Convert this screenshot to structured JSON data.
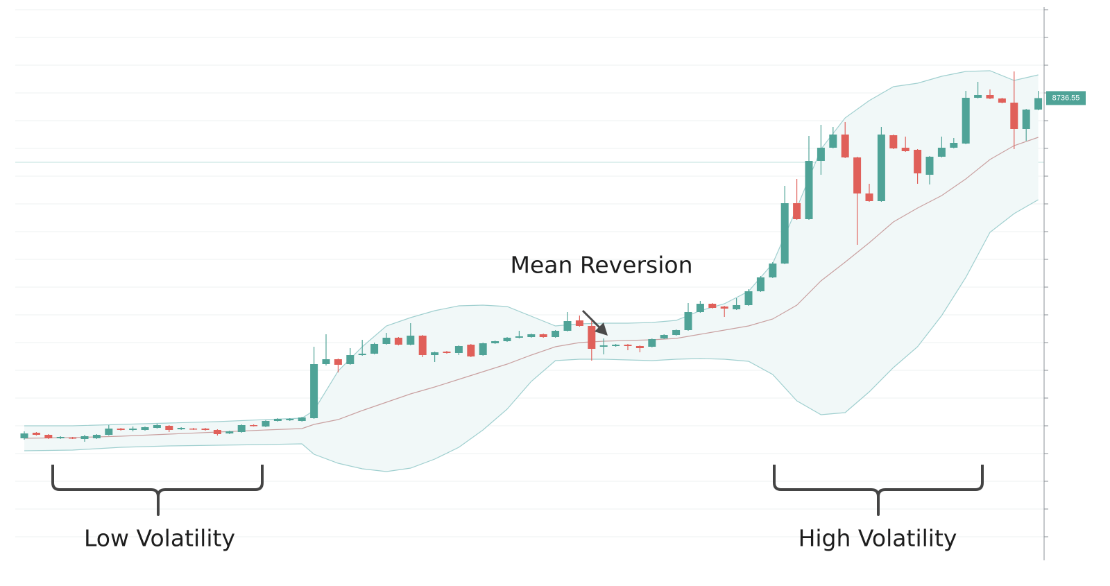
{
  "chart_data": {
    "type": "candlestick",
    "ylim": [
      8073,
      8868
    ],
    "yticks": [
      8864,
      8824,
      8784,
      8744,
      8704,
      8664,
      8624,
      8584,
      8544,
      8504,
      8464,
      8424,
      8384,
      8344,
      8304,
      8264,
      8224,
      8184,
      8144,
      8104
    ],
    "grid": true,
    "up_color": "#4fa397",
    "down_color": "#e0605a",
    "open": [
      8246,
      8254,
      8251,
      8246,
      8247,
      8245,
      8246,
      8251,
      8260,
      8258,
      8258,
      8261,
      8264,
      8259,
      8260,
      8260,
      8258,
      8253,
      8255,
      8265,
      8263,
      8271,
      8272,
      8271,
      8275,
      8353,
      8360,
      8353,
      8366,
      8368,
      8382,
      8391,
      8381,
      8394,
      8366,
      8371,
      8369,
      8381,
      8366,
      8383,
      8386,
      8391,
      8392,
      8396,
      8392,
      8401,
      8416,
      8408,
      8378,
      8379,
      8381,
      8379,
      8378,
      8390,
      8395,
      8402,
      8428,
      8440,
      8436,
      8432,
      8438,
      8458,
      8478,
      8498,
      8585,
      8562,
      8646,
      8665,
      8684,
      8651,
      8599,
      8588,
      8683,
      8665,
      8662,
      8626,
      8652,
      8665,
      8671,
      8737,
      8741,
      8736,
      8730,
      8692,
      8720
    ],
    "high": [
      8256,
      8255,
      8252,
      8249,
      8248,
      8251,
      8252,
      8265,
      8261,
      8263,
      8263,
      8267,
      8265,
      8262,
      8261,
      8261,
      8259,
      8257,
      8266,
      8266,
      8272,
      8275,
      8275,
      8277,
      8378,
      8396,
      8361,
      8376,
      8388,
      8384,
      8398,
      8392,
      8412,
      8395,
      8371,
      8372,
      8380,
      8382,
      8384,
      8387,
      8392,
      8401,
      8397,
      8397,
      8402,
      8428,
      8423,
      8415,
      8390,
      8382,
      8382,
      8380,
      8390,
      8396,
      8403,
      8441,
      8444,
      8441,
      8437,
      8448,
      8461,
      8480,
      8500,
      8610,
      8620,
      8682,
      8698,
      8695,
      8702,
      8652,
      8613,
      8695,
      8684,
      8681,
      8663,
      8653,
      8681,
      8679,
      8747,
      8760,
      8749,
      8737,
      8775,
      8721,
      8747
    ],
    "low": [
      8244,
      8250,
      8245,
      8245,
      8245,
      8241,
      8245,
      8250,
      8257,
      8256,
      8257,
      8260,
      8255,
      8258,
      8258,
      8257,
      8250,
      8252,
      8254,
      8263,
      8262,
      8270,
      8271,
      8270,
      8274,
      8351,
      8341,
      8352,
      8365,
      8367,
      8381,
      8380,
      8380,
      8363,
      8356,
      8368,
      8366,
      8363,
      8365,
      8382,
      8385,
      8390,
      8391,
      8391,
      8391,
      8400,
      8407,
      8358,
      8367,
      8378,
      8373,
      8370,
      8377,
      8389,
      8394,
      8401,
      8427,
      8433,
      8421,
      8431,
      8437,
      8457,
      8477,
      8497,
      8561,
      8561,
      8626,
      8664,
      8650,
      8525,
      8587,
      8587,
      8663,
      8659,
      8613,
      8612,
      8651,
      8664,
      8670,
      8736,
      8735,
      8729,
      8663,
      8675,
      8719
    ],
    "close": [
      8253,
      8251,
      8246,
      8248,
      8246,
      8249,
      8251,
      8260,
      8258,
      8260,
      8262,
      8265,
      8258,
      8261,
      8259,
      8258,
      8252,
      8256,
      8265,
      8264,
      8271,
      8274,
      8274,
      8276,
      8353,
      8360,
      8352,
      8366,
      8368,
      8382,
      8391,
      8381,
      8394,
      8366,
      8370,
      8369,
      8379,
      8364,
      8383,
      8386,
      8391,
      8393,
      8396,
      8392,
      8401,
      8415,
      8408,
      8375,
      8380,
      8381,
      8379,
      8376,
      8389,
      8395,
      8402,
      8428,
      8440,
      8434,
      8433,
      8438,
      8458,
      8478,
      8498,
      8585,
      8562,
      8646,
      8665,
      8684,
      8651,
      8599,
      8588,
      8684,
      8664,
      8660,
      8628,
      8652,
      8665,
      8672,
      8737,
      8741,
      8736,
      8730,
      8692,
      8720,
      8736.55
    ],
    "price_label": "8736.55",
    "bands": {
      "band_color": "#9fcfcf",
      "fill_color": "#f1f8f8",
      "middle_color": "#c9a0a0",
      "x": [
        0,
        4,
        8,
        12,
        16,
        20,
        23,
        24,
        26,
        28,
        30,
        32,
        34,
        36,
        38,
        40,
        42,
        44,
        46,
        48,
        50,
        52,
        54,
        56,
        58,
        60,
        62,
        64,
        66,
        68,
        70,
        72,
        74,
        76,
        78,
        80,
        82,
        84
      ],
      "upper": [
        8264,
        8264,
        8266,
        8268,
        8270,
        8273,
        8275,
        8286,
        8343,
        8378,
        8408,
        8420,
        8430,
        8437,
        8438,
        8436,
        8422,
        8408,
        8411,
        8412,
        8412,
        8413,
        8416,
        8430,
        8440,
        8458,
        8498,
        8578,
        8663,
        8708,
        8733,
        8753,
        8758,
        8768,
        8775,
        8776,
        8762,
        8770
      ],
      "middle": [
        8246,
        8247,
        8249,
        8252,
        8255,
        8258,
        8260,
        8266,
        8273,
        8286,
        8298,
        8310,
        8320,
        8331,
        8342,
        8353,
        8366,
        8378,
        8384,
        8386,
        8387,
        8388,
        8390,
        8396,
        8402,
        8408,
        8418,
        8438,
        8473,
        8500,
        8528,
        8558,
        8578,
        8596,
        8620,
        8648,
        8668,
        8680
      ],
      "lower": [
        8228,
        8229,
        8233,
        8235,
        8236,
        8237,
        8238,
        8223,
        8210,
        8202,
        8198,
        8203,
        8216,
        8233,
        8258,
        8288,
        8328,
        8358,
        8360,
        8360,
        8359,
        8358,
        8360,
        8361,
        8360,
        8357,
        8338,
        8300,
        8280,
        8283,
        8313,
        8348,
        8378,
        8423,
        8478,
        8543,
        8570,
        8590
      ]
    },
    "annotations": [
      "Mean Reversion",
      "Low Volatility",
      "High Volatility"
    ]
  }
}
